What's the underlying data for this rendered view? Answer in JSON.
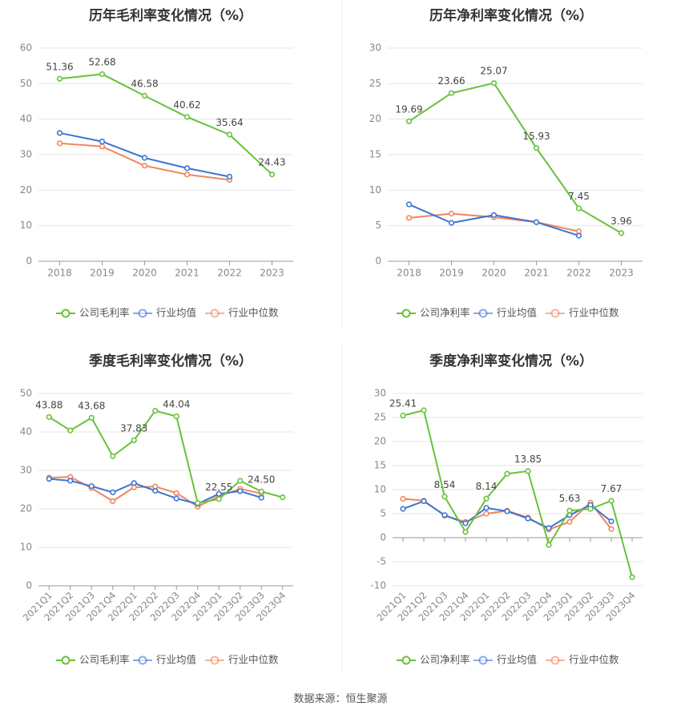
{
  "source": "数据来源：恒生聚源",
  "colors": {
    "company": "#67c23a",
    "avg": "#3b74d4",
    "median": "#f0855c"
  },
  "chart_data": [
    {
      "type": "line",
      "title": "历年毛利率变化情况（%）",
      "categories": [
        "2018",
        "2019",
        "2020",
        "2021",
        "2022",
        "2023"
      ],
      "ylim": [
        0,
        60
      ],
      "yticks": [
        0,
        10,
        20,
        30,
        40,
        50,
        60
      ],
      "series": [
        {
          "name": "公司毛利率",
          "values": [
            51.36,
            52.68,
            46.58,
            40.62,
            35.64,
            24.43
          ],
          "labels": [
            "51.36",
            "52.68",
            "46.58",
            "40.62",
            "35.64",
            "24.43"
          ]
        },
        {
          "name": "行业均值",
          "values": [
            36.1,
            33.7,
            29.1,
            26.2,
            23.8,
            null
          ]
        },
        {
          "name": "行业中位数",
          "values": [
            33.2,
            32.3,
            26.9,
            24.4,
            22.9,
            null
          ]
        }
      ]
    },
    {
      "type": "line",
      "title": "历年净利率变化情况（%）",
      "categories": [
        "2018",
        "2019",
        "2020",
        "2021",
        "2022",
        "2023"
      ],
      "ylim": [
        0,
        30
      ],
      "yticks": [
        0,
        5,
        10,
        15,
        20,
        25,
        30
      ],
      "series": [
        {
          "name": "公司净利率",
          "values": [
            19.69,
            23.66,
            25.07,
            15.93,
            7.45,
            3.96
          ],
          "labels": [
            "19.69",
            "23.66",
            "25.07",
            "15.93",
            "7.45",
            "3.96"
          ]
        },
        {
          "name": "行业均值",
          "values": [
            8.0,
            5.4,
            6.5,
            5.5,
            3.6,
            null
          ]
        },
        {
          "name": "行业中位数",
          "values": [
            6.1,
            6.7,
            6.2,
            5.5,
            4.2,
            null
          ]
        }
      ]
    },
    {
      "type": "line",
      "title": "季度毛利率变化情况（%）",
      "categories": [
        "2021Q1",
        "2021Q2",
        "2021Q3",
        "2021Q4",
        "2022Q1",
        "2022Q2",
        "2022Q3",
        "2022Q4",
        "2023Q1",
        "2023Q2",
        "2023Q3",
        "2023Q4"
      ],
      "ylim": [
        0,
        50
      ],
      "yticks": [
        0,
        10,
        20,
        30,
        40,
        50
      ],
      "series": [
        {
          "name": "公司毛利率",
          "values": [
            43.88,
            40.4,
            43.68,
            33.7,
            37.83,
            45.5,
            44.04,
            21.5,
            22.55,
            27.3,
            24.5,
            23.0
          ],
          "labels": [
            "43.88",
            "",
            "43.68",
            "",
            "37.83",
            "",
            "44.04",
            "",
            "22.55",
            "",
            "24.50",
            ""
          ]
        },
        {
          "name": "行业均值",
          "values": [
            27.8,
            27.3,
            25.9,
            24.3,
            26.7,
            24.7,
            22.7,
            21.3,
            23.9,
            24.6,
            22.9,
            null
          ]
        },
        {
          "name": "行业中位数",
          "values": [
            28.1,
            28.3,
            25.4,
            22.0,
            25.6,
            25.8,
            24.1,
            20.6,
            23.3,
            25.2,
            24.0,
            null
          ]
        }
      ]
    },
    {
      "type": "line",
      "title": "季度净利率变化情况（%）",
      "categories": [
        "2021Q1",
        "2021Q2",
        "2021Q3",
        "2021Q4",
        "2022Q1",
        "2022Q2",
        "2022Q3",
        "2022Q4",
        "2023Q1",
        "2023Q2",
        "2023Q3",
        "2023Q4"
      ],
      "ylim": [
        -10,
        30
      ],
      "yticks": [
        -10,
        -5,
        0,
        5,
        10,
        15,
        20,
        25,
        30
      ],
      "series": [
        {
          "name": "公司净利率",
          "values": [
            25.41,
            26.5,
            8.54,
            1.2,
            8.14,
            13.3,
            13.85,
            -1.5,
            5.63,
            6.0,
            7.67,
            -8.2
          ],
          "labels": [
            "25.41",
            "",
            "8.54",
            "",
            "8.14",
            "",
            "13.85",
            "",
            "5.63",
            "",
            "7.67",
            ""
          ]
        },
        {
          "name": "行业均值",
          "values": [
            6.0,
            7.6,
            4.7,
            3.0,
            6.2,
            5.5,
            4.0,
            2.0,
            4.7,
            6.8,
            3.4,
            null
          ]
        },
        {
          "name": "行业中位数",
          "values": [
            8.1,
            7.7,
            4.6,
            3.3,
            5.0,
            5.6,
            4.2,
            1.7,
            3.3,
            7.3,
            1.8,
            null
          ]
        }
      ]
    }
  ]
}
